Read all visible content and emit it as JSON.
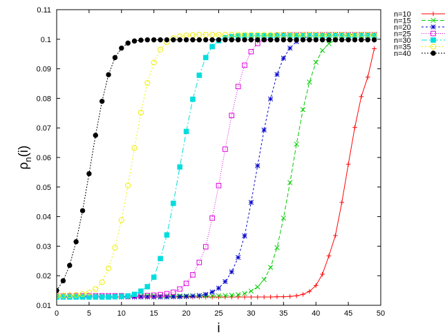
{
  "chart_data": {
    "type": "line",
    "xlabel": "i",
    "ylabel": "ρn(i)",
    "ylabel_base": "ρ",
    "ylabel_sub": "n",
    "ylabel_rest": "(i)",
    "xlim": [
      0,
      50
    ],
    "ylim": [
      0.01,
      0.11
    ],
    "xticks": [
      "0",
      "5",
      "10",
      "15",
      "20",
      "25",
      "30",
      "35",
      "40",
      "45",
      "50"
    ],
    "yticks": [
      "0.01",
      "0.02",
      "0.03",
      "0.04",
      "0.05",
      "0.06",
      "0.07",
      "0.08",
      "0.09",
      "0.1",
      "0.11"
    ],
    "grid": false,
    "legend_position": "outside-top-right",
    "series": [
      {
        "name": "n=10",
        "color": "#ff0000",
        "marker": "plus",
        "dash": "",
        "values": [
          0.0128,
          0.0128,
          0.0128,
          0.0128,
          0.0128,
          0.0128,
          0.0128,
          0.0128,
          0.0128,
          0.0128,
          0.0128,
          0.0128,
          0.0128,
          0.0128,
          0.0128,
          0.0128,
          0.0128,
          0.0128,
          0.0128,
          0.0128,
          0.0128,
          0.0128,
          0.0128,
          0.0128,
          0.0128,
          0.0128,
          0.0128,
          0.0128,
          0.0128,
          0.0128,
          0.0128,
          0.0128,
          0.0128,
          0.0128,
          0.0129,
          0.0129,
          0.013,
          0.0132,
          0.0137,
          0.0147,
          0.0167,
          0.0205,
          0.0267,
          0.0336,
          0.0448,
          0.0577,
          0.0702,
          0.0806,
          0.0872,
          0.0968
        ]
      },
      {
        "name": "n=15",
        "color": "#00cc00",
        "marker": "x",
        "dash": "6,3",
        "values": [
          0.0132,
          0.0132,
          0.0132,
          0.0132,
          0.0132,
          0.0132,
          0.0132,
          0.0132,
          0.0132,
          0.0132,
          0.0132,
          0.0132,
          0.0132,
          0.0132,
          0.0132,
          0.0132,
          0.0132,
          0.0132,
          0.0132,
          0.0132,
          0.0132,
          0.0132,
          0.0132,
          0.0132,
          0.0132,
          0.0132,
          0.0133,
          0.0134,
          0.0136,
          0.014,
          0.0148,
          0.0162,
          0.0187,
          0.0228,
          0.0295,
          0.0395,
          0.0515,
          0.0645,
          0.0762,
          0.0855,
          0.0922,
          0.0962,
          0.0985,
          0.0998,
          0.1005,
          0.1009,
          0.101,
          0.1011,
          0.1011,
          0.1011
        ]
      },
      {
        "name": "n=20",
        "color": "#0000cc",
        "marker": "star",
        "dash": "3,3",
        "values": [
          0.0128,
          0.0128,
          0.0128,
          0.0128,
          0.0128,
          0.0128,
          0.0128,
          0.0128,
          0.0128,
          0.0128,
          0.0128,
          0.0128,
          0.0128,
          0.0128,
          0.0128,
          0.0128,
          0.0128,
          0.0128,
          0.0129,
          0.0129,
          0.013,
          0.0131,
          0.0133,
          0.0137,
          0.0145,
          0.0158,
          0.018,
          0.0213,
          0.0262,
          0.0335,
          0.0448,
          0.0572,
          0.0693,
          0.0798,
          0.0881,
          0.0936,
          0.097,
          0.0992,
          0.1003,
          0.101,
          0.1013,
          0.1015,
          0.1016,
          0.1016,
          0.1016,
          0.1016,
          0.1016,
          0.1016,
          0.1016,
          0.1016
        ]
      },
      {
        "name": "n=25",
        "color": "#dd00dd",
        "marker": "square-open",
        "dash": "1,2",
        "values": [
          0.0132,
          0.0132,
          0.0132,
          0.0132,
          0.0132,
          0.0132,
          0.0132,
          0.0132,
          0.0132,
          0.0132,
          0.0132,
          0.0132,
          0.0132,
          0.0133,
          0.0133,
          0.0134,
          0.0136,
          0.0139,
          0.0144,
          0.0155,
          0.0174,
          0.0203,
          0.0245,
          0.0298,
          0.0395,
          0.0505,
          0.0628,
          0.0742,
          0.084,
          0.0912,
          0.0958,
          0.0986,
          0.1001,
          0.1009,
          0.1013,
          0.1014,
          0.1015,
          0.1015,
          0.1015,
          0.1015,
          0.1015,
          0.1015,
          0.1015,
          0.1015,
          0.1015,
          0.1015,
          0.1015,
          0.1015,
          0.1015,
          0.1015
        ]
      },
      {
        "name": "n=30",
        "color": "#00dddd",
        "marker": "square-filled",
        "dash": "8,3,2,3",
        "values": [
          0.0128,
          0.0128,
          0.0128,
          0.0128,
          0.0128,
          0.0128,
          0.0128,
          0.0128,
          0.0128,
          0.0129,
          0.013,
          0.0132,
          0.0137,
          0.0148,
          0.0163,
          0.0195,
          0.0258,
          0.0338,
          0.0445,
          0.0568,
          0.0688,
          0.0797,
          0.0878,
          0.0938,
          0.0975,
          0.0995,
          0.1005,
          0.1009,
          0.1011,
          0.1012,
          0.1012,
          0.1012,
          0.1012,
          0.1012,
          0.1012,
          0.1012,
          0.1012,
          0.1012,
          0.1012,
          0.1012,
          0.1012,
          0.1012,
          0.1012,
          0.1012,
          0.1012,
          0.1012,
          0.1012,
          0.1012,
          0.1012,
          0.1012
        ]
      },
      {
        "name": "n=35",
        "color": "#eeee00",
        "marker": "circle-open",
        "dash": "2,3",
        "values": [
          0.0133,
          0.0133,
          0.0134,
          0.0135,
          0.0138,
          0.0143,
          0.0155,
          0.0178,
          0.0225,
          0.0295,
          0.0388,
          0.0505,
          0.0632,
          0.0752,
          0.0852,
          0.0921,
          0.0965,
          0.099,
          0.1003,
          0.101,
          0.1013,
          0.1014,
          0.1015,
          0.1015,
          0.1015,
          0.1015,
          0.1015,
          0.1015,
          0.1015,
          0.1015,
          0.1015,
          0.1015,
          0.1015,
          0.1015,
          0.1015,
          0.1015,
          0.1015,
          0.1015,
          0.1015,
          0.1015,
          0.1015,
          0.1015,
          0.1015,
          0.1015,
          0.1015,
          0.1015,
          0.1015,
          0.1015,
          0.1015,
          0.1015
        ]
      },
      {
        "name": "n=40",
        "color": "#000000",
        "marker": "circle-filled",
        "dash": "2,2",
        "values": [
          0.015,
          0.0183,
          0.0235,
          0.0315,
          0.042,
          0.0545,
          0.0675,
          0.079,
          0.088,
          0.0938,
          0.097,
          0.0987,
          0.0994,
          0.0997,
          0.0998,
          0.0998,
          0.0998,
          0.0998,
          0.0998,
          0.0998,
          0.0998,
          0.0998,
          0.0998,
          0.0998,
          0.0998,
          0.0998,
          0.0998,
          0.0998,
          0.0998,
          0.0998,
          0.0998,
          0.0998,
          0.0998,
          0.0998,
          0.0998,
          0.0998,
          0.0998,
          0.0998,
          0.0998,
          0.0998,
          0.0998,
          0.0998,
          0.0998,
          0.0998,
          0.0998,
          0.0998,
          0.0998,
          0.0998,
          0.0998,
          0.0998
        ]
      }
    ]
  }
}
